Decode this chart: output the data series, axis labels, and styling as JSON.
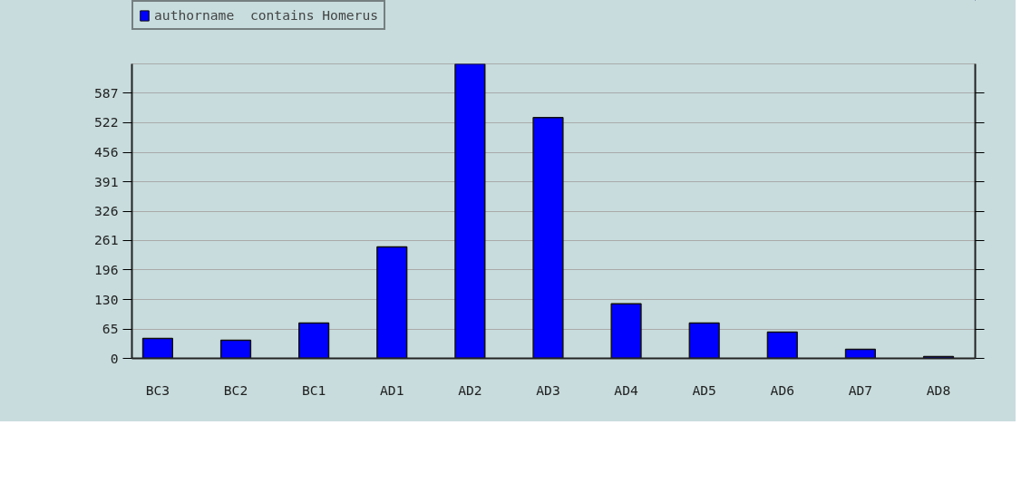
{
  "chart_data": {
    "type": "bar",
    "categories": [
      "BC3",
      "BC2",
      "BC1",
      "AD1",
      "AD2",
      "AD3",
      "AD4",
      "AD5",
      "AD6",
      "AD7",
      "AD8"
    ],
    "series": [
      {
        "name": "authorname  contains Homerus",
        "color": "#0000ff",
        "values": [
          44,
          40,
          78,
          247,
          652,
          533,
          121,
          78,
          58,
          20,
          4
        ]
      }
    ],
    "ylim": [
      0,
      652
    ],
    "yticks": [
      0,
      65,
      130,
      196,
      261,
      326,
      391,
      456,
      522,
      587
    ],
    "grid": "y",
    "legend": "top left"
  }
}
